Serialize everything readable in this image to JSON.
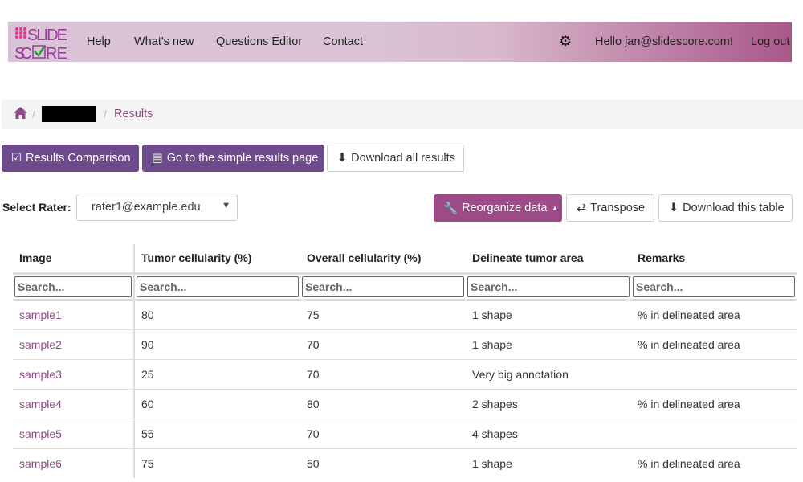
{
  "nav": {
    "logo_text": "SLIDE SCORE",
    "items": [
      "Help",
      "What's new",
      "Questions Editor",
      "Contact"
    ],
    "greeting": "Hello jan@slidescore.com!",
    "logout": "Log out",
    "settings_icon": "gear-icon"
  },
  "breadcrumb": {
    "home_icon": "home-icon",
    "current": "Results"
  },
  "actions": {
    "comparison": "Results Comparison",
    "simple": "Go to the simple results page",
    "download_all": "Download all results"
  },
  "rater": {
    "label": "Select Rater:",
    "value": "rater1@example.edu"
  },
  "table_tools": {
    "reorganize": "Reorganize data",
    "transpose": "Transpose",
    "download": "Download this table"
  },
  "colors": {
    "accent": "#6e4b8c",
    "magenta": "#9c4b86",
    "link": "#8e4a85"
  },
  "table": {
    "headers": [
      "Image",
      "Tumor cellularity (%)",
      "Overall cellularity (%)",
      "Delineate tumor area",
      "Remarks"
    ],
    "search_placeholder": "Search...",
    "rows": [
      [
        "sample1",
        "80",
        "75",
        "1 shape",
        "% in delineated area"
      ],
      [
        "sample2",
        "90",
        "70",
        "1 shape",
        "% in delineated area"
      ],
      [
        "sample3",
        "25",
        "70",
        "Very big annotation",
        ""
      ],
      [
        "sample4",
        "60",
        "80",
        "2 shapes",
        "% in delineated area"
      ],
      [
        "sample5",
        "55",
        "70",
        "4 shapes",
        ""
      ],
      [
        "sample6",
        "75",
        "50",
        "1 shape",
        "% in delineated area"
      ]
    ]
  }
}
